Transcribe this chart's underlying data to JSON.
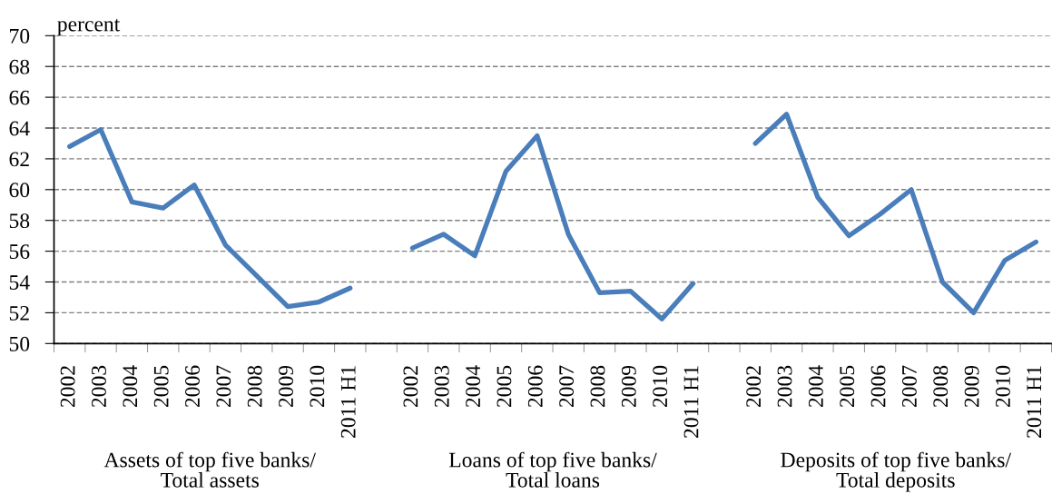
{
  "chart_data": {
    "type": "line",
    "ylabel": "percent",
    "categories": [
      "2002",
      "2003",
      "2004",
      "2005",
      "2006",
      "2007",
      "2008",
      "2009",
      "2010",
      "2011 H1",
      null,
      "2002",
      "2003",
      "2004",
      "2005",
      "2006",
      "2007",
      "2008",
      "2009",
      "2010",
      "2011 H1",
      null,
      "2002",
      "2003",
      "2004",
      "2005",
      "2006",
      "2007",
      "2008",
      "2009",
      "2010",
      "2011 H1"
    ],
    "series": [
      {
        "color": "#4a7ebb",
        "values": [
          62.8,
          63.9,
          59.2,
          58.8,
          60.3,
          56.4,
          54.4,
          52.4,
          52.7,
          53.6,
          null,
          56.2,
          57.1,
          55.7,
          61.2,
          63.5,
          57.1,
          53.3,
          53.4,
          51.6,
          53.9,
          null,
          63.0,
          64.9,
          59.5,
          57.0,
          58.4,
          60.0,
          54.0,
          52.0,
          55.4,
          56.6
        ]
      }
    ],
    "ylim": [
      50,
      70
    ],
    "yticks": [
      50,
      52,
      54,
      56,
      58,
      60,
      62,
      64,
      66,
      68,
      70
    ],
    "grid": "y",
    "line_style": "solid",
    "annotations": [
      "Assets of top five banks/\nTotal assets",
      "Loans of top five banks/\nTotal loans",
      "Deposits of top five banks/\nTotal deposits"
    ]
  }
}
